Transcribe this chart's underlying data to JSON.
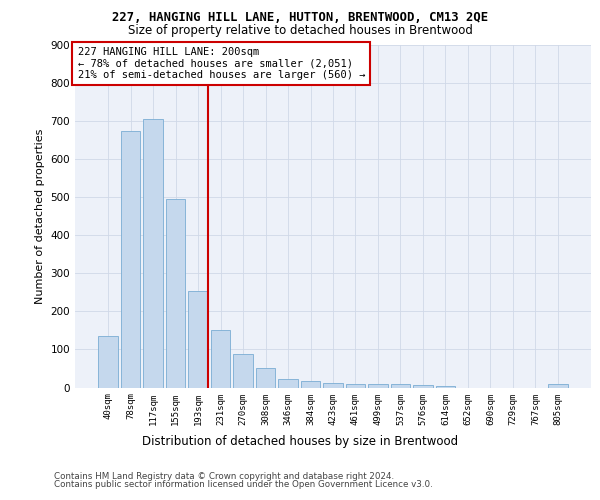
{
  "title1": "227, HANGING HILL LANE, HUTTON, BRENTWOOD, CM13 2QE",
  "title2": "Size of property relative to detached houses in Brentwood",
  "xlabel": "Distribution of detached houses by size in Brentwood",
  "ylabel": "Number of detached properties",
  "categories": [
    "40sqm",
    "78sqm",
    "117sqm",
    "155sqm",
    "193sqm",
    "231sqm",
    "270sqm",
    "308sqm",
    "346sqm",
    "384sqm",
    "423sqm",
    "461sqm",
    "499sqm",
    "537sqm",
    "576sqm",
    "614sqm",
    "652sqm",
    "690sqm",
    "729sqm",
    "767sqm",
    "805sqm"
  ],
  "values": [
    135,
    675,
    705,
    495,
    253,
    150,
    88,
    50,
    22,
    18,
    12,
    10,
    10,
    8,
    7,
    5,
    0,
    0,
    0,
    0,
    8
  ],
  "bar_color": "#c5d8ed",
  "bar_edge_color": "#7aadd4",
  "vline_color": "#cc0000",
  "annotation_box_edge_color": "#cc0000",
  "annotation_line1": "227 HANGING HILL LANE: 200sqm",
  "annotation_line2": "← 78% of detached houses are smaller (2,051)",
  "annotation_line3": "21% of semi-detached houses are larger (560) →",
  "grid_color": "#d0d8e8",
  "plot_bg_color": "#edf1f9",
  "footer1": "Contains HM Land Registry data © Crown copyright and database right 2024.",
  "footer2": "Contains public sector information licensed under the Open Government Licence v3.0.",
  "ylim": [
    0,
    900
  ],
  "yticks": [
    0,
    100,
    200,
    300,
    400,
    500,
    600,
    700,
    800,
    900
  ],
  "vline_x": 4.425
}
